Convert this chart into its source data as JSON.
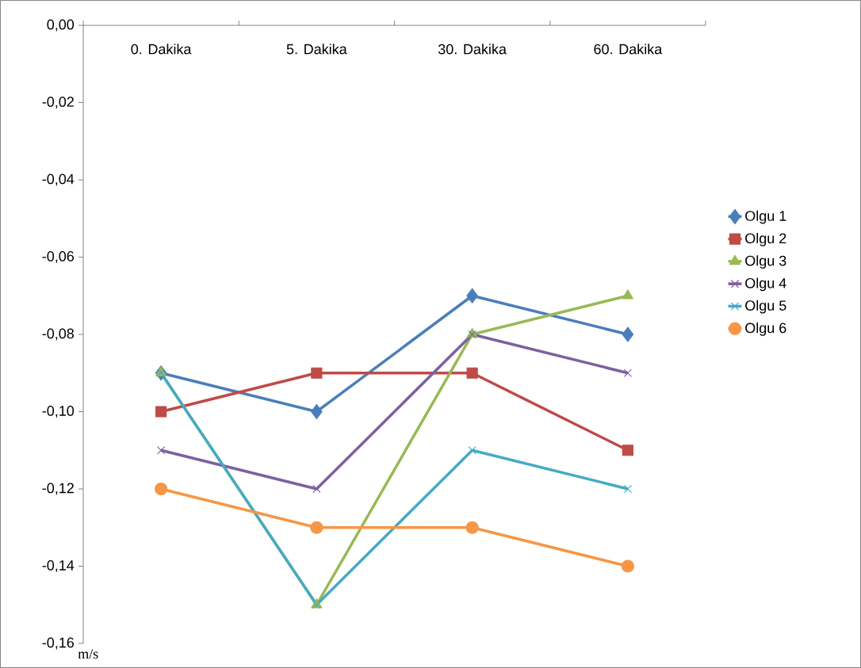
{
  "chart_data": {
    "type": "line",
    "annotations": [
      "m/s"
    ],
    "categories": [
      "0. Dakika",
      "5. Dakika",
      "30. Dakika",
      "60. Dakika"
    ],
    "series": [
      {
        "name": "Olgu 1",
        "color": "#4a7ebb",
        "marker": "diamond",
        "values": [
          -0.09,
          -0.1,
          -0.07,
          -0.08
        ]
      },
      {
        "name": "Olgu 2",
        "color": "#be4b48",
        "marker": "square",
        "values": [
          -0.1,
          -0.09,
          -0.09,
          -0.11
        ]
      },
      {
        "name": "Olgu 3",
        "color": "#98b954",
        "marker": "triangle",
        "values": [
          -0.09,
          -0.15,
          -0.08,
          -0.07
        ]
      },
      {
        "name": "Olgu 4",
        "color": "#7d60a0",
        "marker": "cross",
        "values": [
          -0.11,
          -0.12,
          -0.08,
          -0.09
        ]
      },
      {
        "name": "Olgu 5",
        "color": "#46aac5",
        "marker": "cross",
        "values": [
          -0.09,
          -0.15,
          -0.11,
          -0.12
        ]
      },
      {
        "name": "Olgu 6",
        "color": "#f79646",
        "marker": "circle",
        "values": [
          -0.12,
          -0.13,
          -0.13,
          -0.14
        ]
      }
    ],
    "ylim": [
      -0.16,
      0
    ],
    "yticks": [
      {
        "value": 0,
        "label": "0,00"
      },
      {
        "value": -0.02,
        "label": "-0,02"
      },
      {
        "value": -0.04,
        "label": "-0,04"
      },
      {
        "value": -0.06,
        "label": "-0,06"
      },
      {
        "value": -0.08,
        "label": "-0,08"
      },
      {
        "value": -0.1,
        "label": "-0,10"
      },
      {
        "value": -0.12,
        "label": "-0,12"
      },
      {
        "value": -0.14,
        "label": "-0,14"
      },
      {
        "value": -0.16,
        "label": "-0,16"
      }
    ],
    "grid": false,
    "legend": "right",
    "line_style": "solid"
  }
}
